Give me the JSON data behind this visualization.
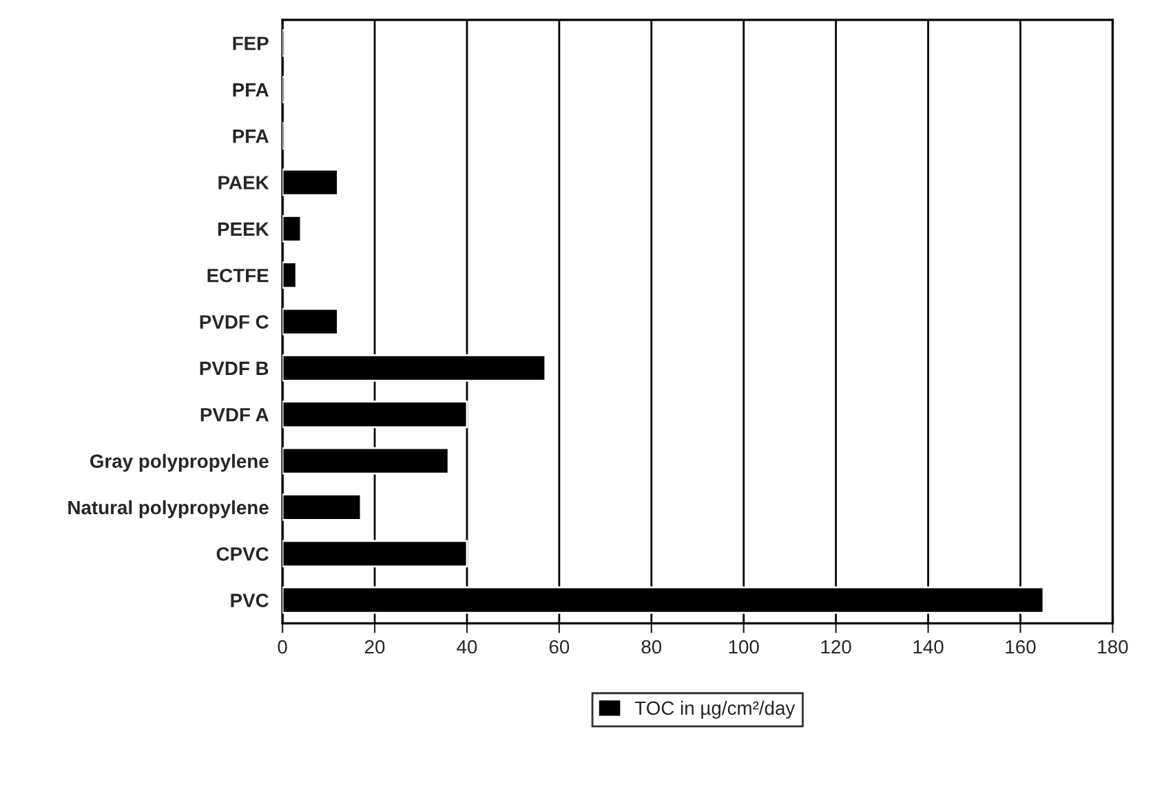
{
  "chart_data": {
    "type": "bar",
    "orientation": "horizontal",
    "categories": [
      "FEP",
      "PFA",
      "PFA",
      "PAEK",
      "PEEK",
      "ECTFE",
      "PVDF C",
      "PVDF B",
      "PVDF A",
      "Gray polypropylene",
      "Natural polypropylene",
      "CPVC",
      "PVC"
    ],
    "series": [
      {
        "name": "TOC in µg/cm²/day",
        "color": "#000000",
        "values": [
          0.5,
          0.5,
          0.5,
          12,
          4,
          3,
          12,
          57,
          40,
          36,
          17,
          40,
          165
        ]
      }
    ],
    "xlim": [
      0,
      180
    ],
    "xticks": [
      0,
      20,
      40,
      60,
      80,
      100,
      120,
      140,
      160,
      180
    ],
    "grid": "x",
    "legend": "bottom"
  }
}
